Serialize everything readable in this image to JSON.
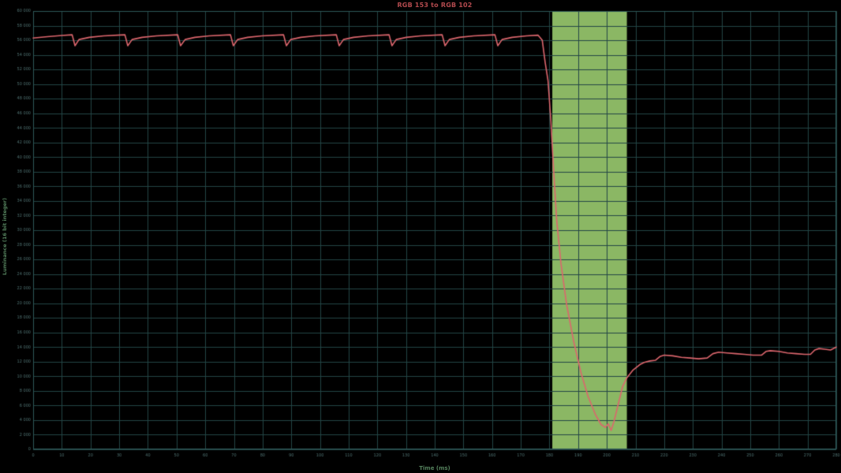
{
  "page": {
    "background": "#000000"
  },
  "chart_data": {
    "type": "line",
    "title": "RGB 153 to RGB 102",
    "xlabel": "Time (ms)",
    "ylabel": "Luminance (16 bit integer)",
    "xlim": [
      0,
      280
    ],
    "ylim": [
      0,
      60000
    ],
    "grid": true,
    "legend": "none",
    "x_ticks": [
      0,
      10,
      20,
      30,
      40,
      50,
      60,
      70,
      80,
      90,
      100,
      110,
      120,
      130,
      140,
      150,
      160,
      170,
      180,
      190,
      200,
      210,
      220,
      230,
      240,
      250,
      260,
      270,
      280
    ],
    "y_ticks": [
      0,
      2000,
      4000,
      6000,
      8000,
      10000,
      12000,
      14000,
      16000,
      18000,
      20000,
      22000,
      24000,
      26000,
      28000,
      30000,
      32000,
      34000,
      36000,
      38000,
      40000,
      42000,
      44000,
      46000,
      48000,
      50000,
      52000,
      54000,
      56000,
      58000,
      60000
    ],
    "highlight_region": {
      "name": "response-time-window",
      "x0": 181,
      "x1": 207
    },
    "colors": {
      "background": "#000000",
      "grid": "#234646",
      "axis": "#2e5858",
      "tick_text": "#4f7272",
      "line": "#dc666d",
      "band": "#8bb764",
      "title": "#b34a4e",
      "axis_label": "#54805c"
    },
    "series": [
      {
        "name": "luminance",
        "points": [
          [
            0,
            56300
          ],
          [
            5,
            56500
          ],
          [
            10,
            56650
          ],
          [
            13.6,
            56750
          ],
          [
            14.6,
            55250
          ],
          [
            16,
            56100
          ],
          [
            19.6,
            56400
          ],
          [
            24.6,
            56600
          ],
          [
            32,
            56750
          ],
          [
            33,
            55250
          ],
          [
            34.5,
            56100
          ],
          [
            38,
            56400
          ],
          [
            43,
            56600
          ],
          [
            50.4,
            56750
          ],
          [
            51.4,
            55250
          ],
          [
            53,
            56100
          ],
          [
            56.4,
            56400
          ],
          [
            61.4,
            56600
          ],
          [
            68.8,
            56750
          ],
          [
            69.8,
            55250
          ],
          [
            71.3,
            56100
          ],
          [
            74.8,
            56400
          ],
          [
            79.8,
            56600
          ],
          [
            87.3,
            56750
          ],
          [
            88.3,
            55250
          ],
          [
            89.8,
            56100
          ],
          [
            93.3,
            56400
          ],
          [
            98.3,
            56600
          ],
          [
            105.7,
            56750
          ],
          [
            106.7,
            55250
          ],
          [
            108.2,
            56100
          ],
          [
            111.7,
            56400
          ],
          [
            116.7,
            56600
          ],
          [
            124.1,
            56750
          ],
          [
            125.1,
            55250
          ],
          [
            126.6,
            56100
          ],
          [
            130.1,
            56400
          ],
          [
            135.1,
            56600
          ],
          [
            142.6,
            56750
          ],
          [
            143.6,
            55250
          ],
          [
            145.1,
            56100
          ],
          [
            148.6,
            56400
          ],
          [
            153.6,
            56600
          ],
          [
            161,
            56750
          ],
          [
            162,
            55250
          ],
          [
            163.5,
            56100
          ],
          [
            167,
            56400
          ],
          [
            172,
            56600
          ],
          [
            176,
            56700
          ],
          [
            177.5,
            56000
          ],
          [
            178.5,
            53000
          ],
          [
            179.5,
            50500
          ],
          [
            180.5,
            45000
          ],
          [
            181.5,
            38000
          ],
          [
            182.5,
            31500
          ],
          [
            184,
            25500
          ],
          [
            186,
            19800
          ],
          [
            188.5,
            14700
          ],
          [
            191,
            10500
          ],
          [
            193.5,
            7200
          ],
          [
            196,
            4800
          ],
          [
            198,
            3400
          ],
          [
            199.5,
            3000
          ],
          [
            200.5,
            3500
          ],
          [
            201.5,
            2600
          ],
          [
            202.5,
            3800
          ],
          [
            204,
            6200
          ],
          [
            205.5,
            8600
          ],
          [
            207,
            9800
          ],
          [
            209,
            10800
          ],
          [
            211.5,
            11600
          ],
          [
            213,
            11900
          ],
          [
            215,
            12100
          ],
          [
            217,
            12200
          ],
          [
            218.5,
            12700
          ],
          [
            220,
            12900
          ],
          [
            223,
            12800
          ],
          [
            226,
            12600
          ],
          [
            229,
            12500
          ],
          [
            232,
            12400
          ],
          [
            235,
            12500
          ],
          [
            237,
            13100
          ],
          [
            239,
            13300
          ],
          [
            242,
            13200
          ],
          [
            245,
            13100
          ],
          [
            248,
            13000
          ],
          [
            251,
            12900
          ],
          [
            254,
            12900
          ],
          [
            255.5,
            13400
          ],
          [
            257,
            13500
          ],
          [
            260,
            13400
          ],
          [
            263,
            13200
          ],
          [
            266,
            13100
          ],
          [
            269,
            13000
          ],
          [
            271,
            13000
          ],
          [
            272.5,
            13600
          ],
          [
            274,
            13800
          ],
          [
            276,
            13700
          ],
          [
            278,
            13600
          ],
          [
            280,
            14000
          ]
        ]
      }
    ]
  }
}
